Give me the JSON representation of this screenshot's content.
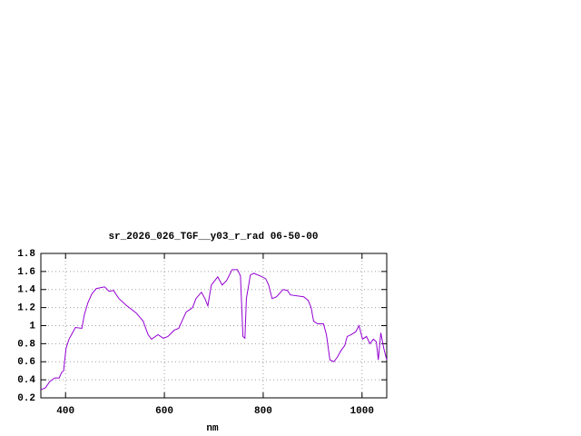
{
  "chart_data": {
    "type": "line",
    "title": "sr_2026_026_TGF__y03_r_rad 06-50-00",
    "x_label": "nm",
    "x": [
      350,
      359,
      368,
      378,
      387,
      392,
      396,
      401,
      407,
      414,
      420,
      433,
      438,
      445,
      453,
      462,
      479,
      488,
      497,
      508,
      524,
      543,
      557,
      567,
      574,
      587,
      598,
      607,
      620,
      629,
      644,
      657,
      664,
      675,
      682,
      688,
      695,
      708,
      717,
      726,
      737,
      748,
      754,
      759,
      763,
      766,
      774,
      781,
      794,
      805,
      811,
      818,
      827,
      840,
      849,
      855,
      882,
      891,
      897,
      902,
      910,
      922,
      928,
      935,
      943,
      950,
      957,
      965,
      970,
      978,
      987,
      994,
      1001,
      1009,
      1016,
      1023,
      1029,
      1033,
      1038,
      1044,
      1050
    ],
    "series": [
      {
        "color": "#9400d3",
        "values": [
          0.29,
          0.31,
          0.38,
          0.42,
          0.42,
          0.48,
          0.5,
          0.75,
          0.85,
          0.92,
          0.98,
          0.97,
          1.12,
          1.25,
          1.35,
          1.41,
          1.43,
          1.38,
          1.39,
          1.3,
          1.22,
          1.14,
          1.05,
          0.9,
          0.85,
          0.9,
          0.86,
          0.88,
          0.95,
          0.97,
          1.15,
          1.2,
          1.3,
          1.37,
          1.3,
          1.22,
          1.45,
          1.54,
          1.45,
          1.5,
          1.62,
          1.62,
          1.55,
          0.88,
          0.86,
          1.3,
          1.56,
          1.58,
          1.55,
          1.52,
          1.45,
          1.3,
          1.32,
          1.4,
          1.39,
          1.34,
          1.32,
          1.28,
          1.2,
          1.05,
          1.02,
          1.02,
          0.9,
          0.62,
          0.6,
          0.65,
          0.72,
          0.78,
          0.88,
          0.9,
          0.93,
          1.0,
          0.85,
          0.88,
          0.8,
          0.85,
          0.82,
          0.62,
          0.92,
          0.75,
          0.62
        ]
      }
    ],
    "xlim": [
      350,
      1050
    ],
    "xticks": [
      400,
      600,
      800,
      1000
    ],
    "ylim": [
      0.2,
      1.8
    ],
    "yticks": [
      0.2,
      0.4,
      0.6,
      0.8,
      1,
      1.2,
      1.4,
      1.6,
      1.8
    ],
    "grid": true
  }
}
